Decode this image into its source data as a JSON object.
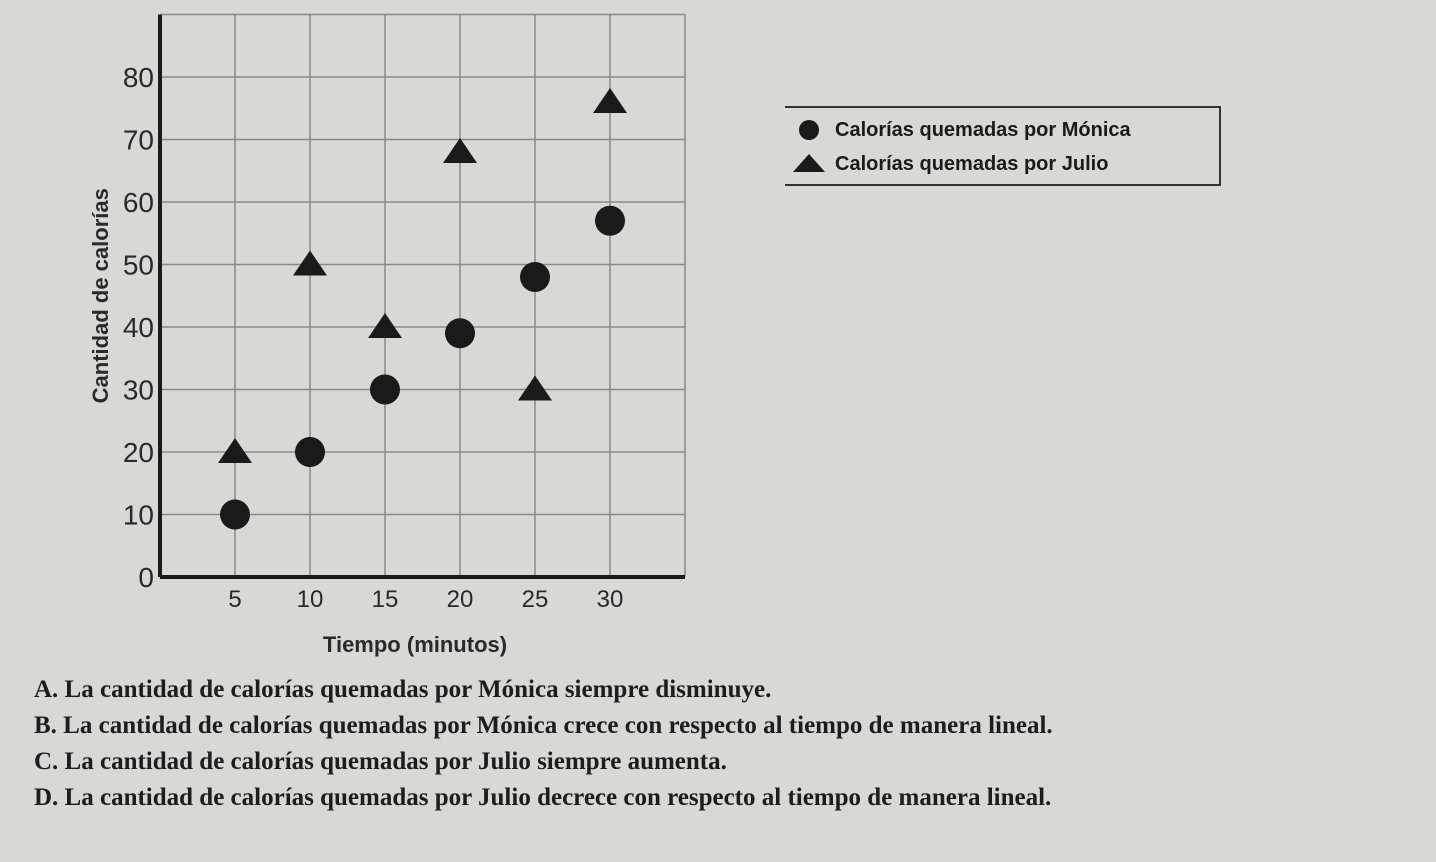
{
  "chart_data": {
    "type": "scatter",
    "title": "",
    "xlabel": "Tiempo (minutos)",
    "ylabel": "Cantidad de calorías",
    "xlim": [
      0,
      35
    ],
    "ylim": [
      0,
      90
    ],
    "x_ticks": [
      5,
      10,
      15,
      20,
      25,
      30
    ],
    "y_ticks": [
      0,
      10,
      20,
      30,
      40,
      50,
      60,
      70,
      80
    ],
    "grid": true,
    "legend_position": "right",
    "series": [
      {
        "name": "Calorías quemadas por Mónica",
        "marker": "circle",
        "color": "#1a1a1a",
        "x": [
          5,
          10,
          15,
          20,
          25,
          30
        ],
        "y": [
          10,
          20,
          30,
          39,
          48,
          57
        ]
      },
      {
        "name": "Calorías quemadas por Julio",
        "marker": "triangle",
        "color": "#1a1a1a",
        "x": [
          5,
          10,
          15,
          20,
          25,
          30
        ],
        "y": [
          20,
          50,
          40,
          68,
          30,
          76
        ]
      }
    ]
  },
  "answers": [
    "A. La cantidad de calorías quemadas por Mónica siempre disminuye.",
    "B. La cantidad de calorías quemadas por Mónica crece con respecto al tiempo de manera lineal.",
    "C. La cantidad de calorías quemadas por Julio siempre aumenta.",
    "D. La cantidad de calorías quemadas por Julio decrece con respecto al tiempo de manera lineal."
  ]
}
